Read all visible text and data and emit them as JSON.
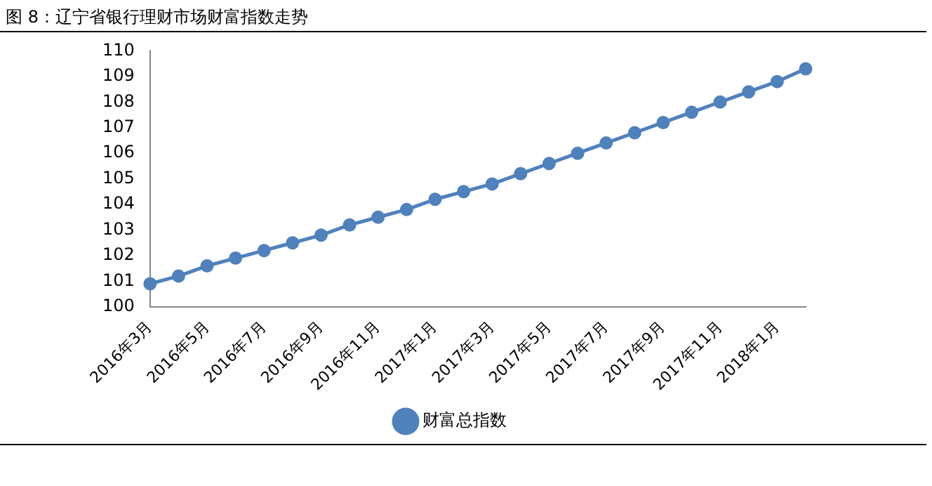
{
  "chart_data": {
    "type": "line",
    "title": "图 8：辽宁省银行理财市场财富指数走势",
    "categories": [
      "2016年3月",
      null,
      "2016年5月",
      null,
      "2016年7月",
      null,
      "2016年9月",
      null,
      "2016年11月",
      null,
      "2017年1月",
      null,
      "2017年3月",
      null,
      "2017年5月",
      null,
      "2017年7月",
      null,
      "2017年9月",
      null,
      "2017年11月",
      null,
      "2018年1月",
      null
    ],
    "series": [
      {
        "name": "财富总指数",
        "color": "#4f81bd",
        "values": [
          100.9,
          101.2,
          101.6,
          101.9,
          102.2,
          102.5,
          102.8,
          103.2,
          103.5,
          103.8,
          104.2,
          104.5,
          104.8,
          105.2,
          105.6,
          106.0,
          106.4,
          106.8,
          107.2,
          107.6,
          108.0,
          108.4,
          108.8,
          109.3
        ]
      }
    ],
    "ylim": [
      100,
      110
    ],
    "yticks": [
      100,
      101,
      102,
      103,
      104,
      105,
      106,
      107,
      108,
      109,
      110
    ],
    "grid": false,
    "legend": "bottom",
    "marker": "circle",
    "line_style": "solid"
  }
}
